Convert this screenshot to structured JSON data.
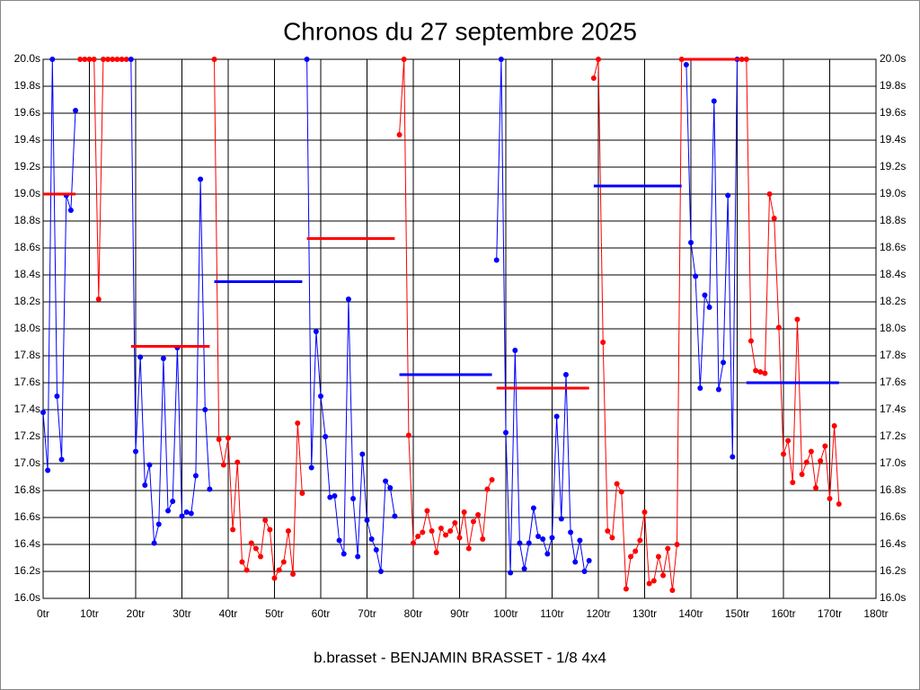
{
  "chart_data": {
    "type": "line",
    "title": "Chronos du 27 septembre 2025",
    "footer": "b.brasset - BENJAMIN BRASSET - 1/8 4x4",
    "xlim": [
      0,
      180
    ],
    "ylim": [
      16.0,
      20.0
    ],
    "grid": true,
    "xticks": [
      {
        "value": 0,
        "label": "0tr"
      },
      {
        "value": 10,
        "label": "10tr"
      },
      {
        "value": 20,
        "label": "20tr"
      },
      {
        "value": 30,
        "label": "30tr"
      },
      {
        "value": 40,
        "label": "40tr"
      },
      {
        "value": 50,
        "label": "50tr"
      },
      {
        "value": 60,
        "label": "60tr"
      },
      {
        "value": 70,
        "label": "70tr"
      },
      {
        "value": 80,
        "label": "80tr"
      },
      {
        "value": 90,
        "label": "90tr"
      },
      {
        "value": 100,
        "label": "100tr"
      },
      {
        "value": 110,
        "label": "110tr"
      },
      {
        "value": 120,
        "label": "120tr"
      },
      {
        "value": 130,
        "label": "130tr"
      },
      {
        "value": 140,
        "label": "140tr"
      },
      {
        "value": 150,
        "label": "150tr"
      },
      {
        "value": 160,
        "label": "160tr"
      },
      {
        "value": 170,
        "label": "170tr"
      },
      {
        "value": 180,
        "label": "180tr"
      }
    ],
    "yticks": [
      {
        "value": 16.0,
        "label": "16.0s"
      },
      {
        "value": 16.2,
        "label": "16.2s"
      },
      {
        "value": 16.4,
        "label": "16.4s"
      },
      {
        "value": 16.6,
        "label": "16.6s"
      },
      {
        "value": 16.8,
        "label": "16.8s"
      },
      {
        "value": 17.0,
        "label": "17.0s"
      },
      {
        "value": 17.2,
        "label": "17.2s"
      },
      {
        "value": 17.4,
        "label": "17.4s"
      },
      {
        "value": 17.6,
        "label": "17.6s"
      },
      {
        "value": 17.8,
        "label": "17.8s"
      },
      {
        "value": 18.0,
        "label": "18.0s"
      },
      {
        "value": 18.2,
        "label": "18.2s"
      },
      {
        "value": 18.4,
        "label": "18.4s"
      },
      {
        "value": 18.6,
        "label": "18.6s"
      },
      {
        "value": 18.8,
        "label": "18.8s"
      },
      {
        "value": 19.0,
        "label": "19.0s"
      },
      {
        "value": 19.2,
        "label": "19.2s"
      },
      {
        "value": 19.4,
        "label": "19.4s"
      },
      {
        "value": 19.6,
        "label": "19.6s"
      },
      {
        "value": 19.8,
        "label": "19.8s"
      },
      {
        "value": 20.0,
        "label": "20.0s"
      }
    ],
    "series": [
      {
        "color": "#0000ff",
        "x": [
          0,
          1,
          2,
          3,
          4,
          5,
          6,
          7
        ],
        "values": [
          17.38,
          16.95,
          20.0,
          17.5,
          17.03,
          18.99,
          18.88,
          19.62
        ]
      },
      {
        "color": "#ff0000",
        "x": [
          8,
          9,
          10,
          11,
          12,
          13,
          14,
          15,
          16,
          17,
          18
        ],
        "values": [
          20.0,
          20.0,
          20.0,
          20.0,
          18.22,
          20.0,
          20.0,
          20.0,
          20.0,
          20.0,
          20.0
        ]
      },
      {
        "color": "#0000ff",
        "x": [
          19,
          20,
          21,
          22,
          23,
          24,
          25,
          26,
          27,
          28,
          29,
          30,
          31,
          32,
          33,
          34,
          35,
          36
        ],
        "values": [
          20.0,
          17.09,
          17.79,
          16.84,
          16.99,
          16.41,
          16.55,
          17.78,
          16.65,
          16.72,
          17.86,
          16.61,
          16.64,
          16.63,
          16.91,
          19.11,
          17.4,
          16.81
        ]
      },
      {
        "color": "#ff0000",
        "x": [
          37,
          38,
          39,
          40,
          41,
          42,
          43,
          44,
          45,
          46,
          47,
          48,
          49,
          50,
          51,
          52,
          53,
          54,
          55,
          56
        ],
        "values": [
          20.0,
          17.18,
          16.99,
          17.19,
          16.51,
          17.01,
          16.27,
          16.21,
          16.41,
          16.37,
          16.31,
          16.58,
          16.51,
          16.15,
          16.21,
          16.27,
          16.5,
          16.18,
          17.3,
          16.78
        ]
      },
      {
        "color": "#0000ff",
        "x": [
          57,
          58,
          59,
          60,
          61,
          62,
          63,
          64,
          65,
          66,
          67,
          68,
          69,
          70,
          71,
          72,
          73,
          74,
          75,
          76
        ],
        "values": [
          20.0,
          16.97,
          17.98,
          17.5,
          17.2,
          16.75,
          16.76,
          16.43,
          16.33,
          18.22,
          16.74,
          16.31,
          17.07,
          16.58,
          16.44,
          16.36,
          16.2,
          16.87,
          16.82,
          16.61
        ]
      },
      {
        "color": "#ff0000",
        "x": [
          77,
          78,
          79,
          80,
          81,
          82,
          83,
          84,
          85,
          86,
          87,
          88,
          89,
          90,
          91,
          92,
          93,
          94,
          95,
          96,
          97
        ],
        "values": [
          19.44,
          20.0,
          17.21,
          16.41,
          16.46,
          16.49,
          16.65,
          16.5,
          16.34,
          16.52,
          16.47,
          16.5,
          16.56,
          16.45,
          16.64,
          16.37,
          16.57,
          16.62,
          16.44,
          16.81,
          16.88
        ]
      },
      {
        "color": "#0000ff",
        "x": [
          98,
          99,
          100,
          101,
          102,
          103,
          104,
          105,
          106,
          107,
          108,
          109,
          110,
          111,
          112,
          113,
          114,
          115,
          116,
          117,
          118
        ],
        "values": [
          18.51,
          20.0,
          17.23,
          16.19,
          17.84,
          16.41,
          16.22,
          16.41,
          16.67,
          16.46,
          16.44,
          16.33,
          16.45,
          17.35,
          16.59,
          17.66,
          16.49,
          16.27,
          16.43,
          16.2,
          16.28
        ]
      },
      {
        "color": "#ff0000",
        "x": [
          119,
          120,
          121,
          122,
          123,
          124,
          125,
          126,
          127,
          128,
          129,
          130,
          131,
          132,
          133,
          134,
          135,
          136,
          137,
          138
        ],
        "values": [
          19.86,
          20.0,
          17.9,
          16.5,
          16.45,
          16.85,
          16.79,
          16.07,
          16.31,
          16.35,
          16.43,
          16.64,
          16.11,
          16.13,
          16.31,
          16.17,
          16.37,
          16.06,
          16.4,
          20.0
        ]
      },
      {
        "color": "#0000ff",
        "x": [
          139,
          140,
          141,
          142,
          143,
          144,
          145,
          146,
          147,
          148,
          149,
          150
        ],
        "values": [
          19.96,
          18.64,
          18.39,
          17.56,
          18.25,
          18.16,
          19.69,
          17.55,
          17.75,
          18.99,
          17.05,
          20.0
        ]
      },
      {
        "color": "#ff0000",
        "x": [
          151,
          152,
          153,
          154,
          155,
          156,
          157,
          158,
          159,
          160,
          161,
          162,
          163,
          164,
          165,
          166,
          167,
          168,
          169,
          170,
          171,
          172
        ],
        "values": [
          20.0,
          20.0,
          17.91,
          17.69,
          17.68,
          17.67,
          19.0,
          18.82,
          18.01,
          17.07,
          17.17,
          16.86,
          18.07,
          16.92,
          17.01,
          17.09,
          16.82,
          17.02,
          17.13,
          16.74,
          17.28,
          16.7
        ]
      }
    ],
    "averages": [
      {
        "color": "#ff0000",
        "x": [
          0,
          7
        ],
        "value": 19.0
      },
      {
        "color": "#ff0000",
        "x": [
          19,
          36
        ],
        "value": 17.87
      },
      {
        "color": "#0000ff",
        "x": [
          37,
          56
        ],
        "value": 18.35
      },
      {
        "color": "#ff0000",
        "x": [
          57,
          76
        ],
        "value": 18.67
      },
      {
        "color": "#0000ff",
        "x": [
          77,
          97
        ],
        "value": 17.66
      },
      {
        "color": "#ff0000",
        "x": [
          98,
          118
        ],
        "value": 17.56
      },
      {
        "color": "#0000ff",
        "x": [
          119,
          138
        ],
        "value": 19.06
      },
      {
        "color": "#ff0000",
        "x": [
          138,
          152
        ],
        "value": 20.0
      },
      {
        "color": "#0000ff",
        "x": [
          152,
          172
        ],
        "value": 17.6
      }
    ]
  }
}
